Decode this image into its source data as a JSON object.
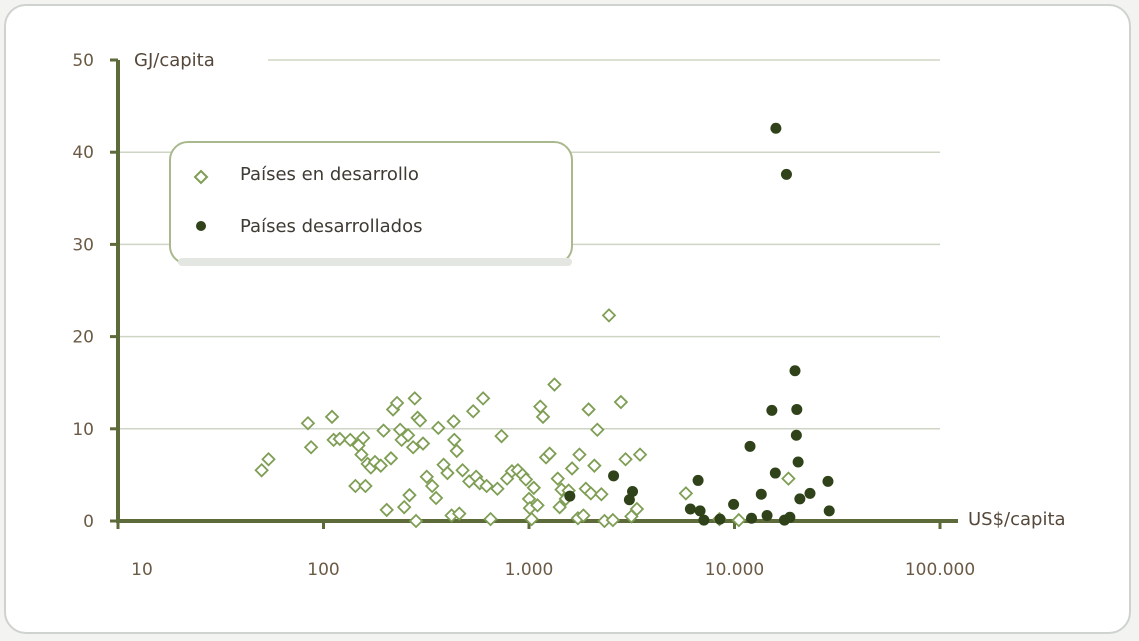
{
  "colors": {
    "axis": "#5d6a3a",
    "grid": "#cfd5c4",
    "developing": "#7f9e55",
    "developed": "#2f4219",
    "legend_border": "#aab98d"
  },
  "chart_data": {
    "type": "scatter",
    "x_scale": "log",
    "xlim": [
      10,
      100000
    ],
    "ylim": [
      0,
      50
    ],
    "grid": true,
    "xlabel": "US$/capita",
    "ylabel": "GJ/capita",
    "x_ticks": [
      10,
      100,
      1000,
      10000,
      100000
    ],
    "x_tick_labels": [
      "10",
      "100",
      "1.000",
      "10.000",
      "100.000"
    ],
    "y_ticks": [
      0,
      10,
      20,
      30,
      40,
      50
    ],
    "y_tick_labels": [
      "0",
      "10",
      "20",
      "30",
      "40",
      "50"
    ],
    "legend_position": "top-left",
    "series": [
      {
        "name": "Países en desarrollo",
        "marker": "open-diamond",
        "points": [
          [
            50,
            5.5
          ],
          [
            54,
            6.7
          ],
          [
            84,
            10.6
          ],
          [
            87,
            8.0
          ],
          [
            110,
            11.3
          ],
          [
            112,
            8.8
          ],
          [
            120,
            8.9
          ],
          [
            135,
            8.8
          ],
          [
            143,
            3.8
          ],
          [
            148,
            8.2
          ],
          [
            153,
            7.2
          ],
          [
            156,
            9.0
          ],
          [
            160,
            3.8
          ],
          [
            164,
            6.2
          ],
          [
            170,
            5.8
          ],
          [
            178,
            6.4
          ],
          [
            190,
            6.0
          ],
          [
            196,
            9.8
          ],
          [
            203,
            1.2
          ],
          [
            213,
            6.8
          ],
          [
            218,
            12.1
          ],
          [
            228,
            12.8
          ],
          [
            236,
            9.9
          ],
          [
            240,
            8.8
          ],
          [
            247,
            1.5
          ],
          [
            258,
            9.3
          ],
          [
            262,
            2.8
          ],
          [
            273,
            8.0
          ],
          [
            278,
            13.3
          ],
          [
            282,
            0.0
          ],
          [
            287,
            11.2
          ],
          [
            295,
            10.9
          ],
          [
            305,
            8.4
          ],
          [
            318,
            4.8
          ],
          [
            338,
            3.8
          ],
          [
            353,
            2.5
          ],
          [
            362,
            10.1
          ],
          [
            384,
            6.1
          ],
          [
            401,
            5.2
          ],
          [
            420,
            0.6
          ],
          [
            430,
            10.8
          ],
          [
            433,
            8.8
          ],
          [
            445,
            7.6
          ],
          [
            458,
            0.8
          ],
          [
            475,
            5.5
          ],
          [
            512,
            4.3
          ],
          [
            535,
            11.9
          ],
          [
            553,
            4.8
          ],
          [
            576,
            4.1
          ],
          [
            598,
            13.3
          ],
          [
            622,
            3.8
          ],
          [
            650,
            0.2
          ],
          [
            702,
            3.5
          ],
          [
            735,
            9.2
          ],
          [
            782,
            4.6
          ],
          [
            826,
            5.4
          ],
          [
            883,
            5.5
          ],
          [
            930,
            5.0
          ],
          [
            966,
            4.5
          ],
          [
            1000,
            2.4
          ],
          [
            1010,
            1.4
          ],
          [
            1030,
            0.2
          ],
          [
            1055,
            3.6
          ],
          [
            1100,
            1.7
          ],
          [
            1135,
            12.4
          ],
          [
            1170,
            11.3
          ],
          [
            1210,
            6.9
          ],
          [
            1260,
            7.3
          ],
          [
            1330,
            14.8
          ],
          [
            1380,
            4.6
          ],
          [
            1410,
            1.5
          ],
          [
            1440,
            3.4
          ],
          [
            1510,
            2.4
          ],
          [
            1560,
            3.3
          ],
          [
            1620,
            5.7
          ],
          [
            1730,
            0.3
          ],
          [
            1760,
            7.2
          ],
          [
            1840,
            0.6
          ],
          [
            1890,
            3.5
          ],
          [
            1950,
            12.1
          ],
          [
            2000,
            3.0
          ],
          [
            2080,
            6.0
          ],
          [
            2150,
            9.9
          ],
          [
            2250,
            2.9
          ],
          [
            2330,
            0.0
          ],
          [
            2450,
            22.3
          ],
          [
            2560,
            0.1
          ],
          [
            2800,
            12.9
          ],
          [
            2950,
            6.7
          ],
          [
            3150,
            0.5
          ],
          [
            3350,
            1.3
          ],
          [
            3470,
            7.2
          ],
          [
            5800,
            3.0
          ],
          [
            8450,
            0.2
          ],
          [
            10500,
            0.1
          ],
          [
            18300,
            4.6
          ]
        ]
      },
      {
        "name": "Países desarrollados",
        "marker": "filled-circle",
        "points": [
          [
            1580,
            2.7
          ],
          [
            2580,
            4.9
          ],
          [
            3080,
            2.3
          ],
          [
            3190,
            3.2
          ],
          [
            6100,
            1.3
          ],
          [
            6650,
            4.4
          ],
          [
            6800,
            1.1
          ],
          [
            7100,
            0.1
          ],
          [
            8500,
            0.2
          ],
          [
            9900,
            1.8
          ],
          [
            11900,
            8.1
          ],
          [
            12100,
            0.3
          ],
          [
            13500,
            2.9
          ],
          [
            14400,
            0.6
          ],
          [
            15200,
            12.0
          ],
          [
            15800,
            5.2
          ],
          [
            15900,
            42.6
          ],
          [
            17500,
            0.1
          ],
          [
            17900,
            37.6
          ],
          [
            18600,
            0.4
          ],
          [
            19700,
            16.3
          ],
          [
            20000,
            9.3
          ],
          [
            20100,
            12.1
          ],
          [
            20400,
            6.4
          ],
          [
            20800,
            2.4
          ],
          [
            23300,
            3.0
          ],
          [
            28500,
            4.3
          ],
          [
            28900,
            1.1
          ]
        ]
      }
    ]
  }
}
